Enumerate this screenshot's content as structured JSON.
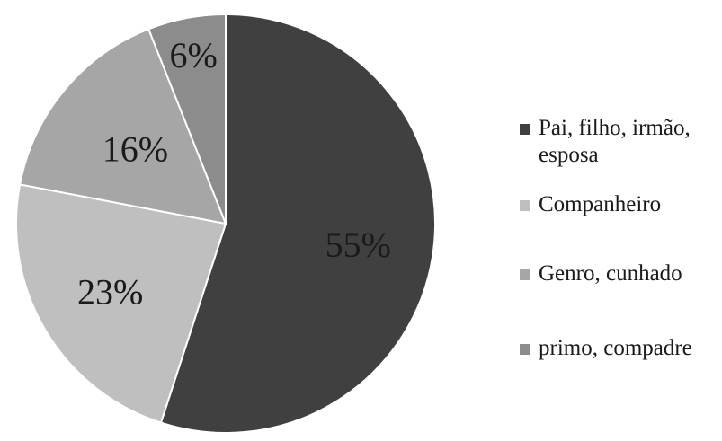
{
  "chart_data": {
    "type": "pie",
    "categories": [
      "Pai, filho, irmão, esposa",
      "Companheiro",
      "Genro, cunhado",
      "primo, compadre"
    ],
    "values": [
      55,
      23,
      16,
      6
    ],
    "labels": [
      "55%",
      "23%",
      "16%",
      "6%"
    ],
    "colors": [
      "#404040",
      "#bfbfbf",
      "#a6a6a6",
      "#8c8c8c"
    ],
    "legend_position": "right"
  }
}
